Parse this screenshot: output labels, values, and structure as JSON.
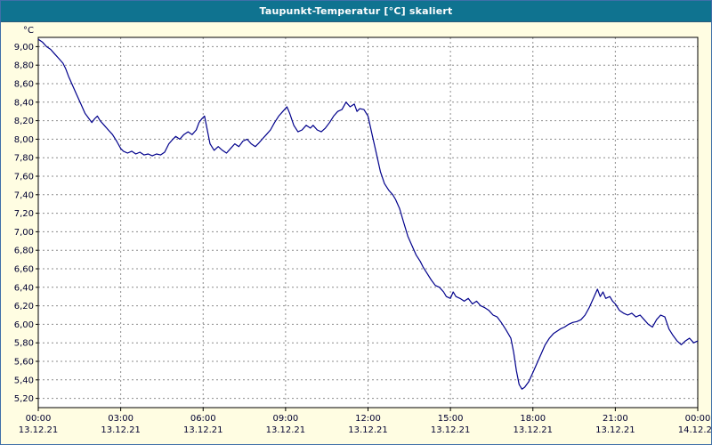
{
  "window": {
    "title": "Taupunkt-Temperatur [°C] skaliert"
  },
  "colors": {
    "title_bar": "#0F7390",
    "background": "#FFFDE2",
    "plot_bg": "#FFFFFF",
    "line": "#00008B",
    "grid": "#8C8C8C",
    "axis": "#000000",
    "frame": "#3F6FA8",
    "text": "#000030"
  },
  "chart_data": {
    "type": "line",
    "title": "Taupunkt-Temperatur [°C] skaliert",
    "ylabel": "°C",
    "ylim": [
      5.1,
      9.1
    ],
    "xlim": [
      0,
      24
    ],
    "grid": "dashed",
    "legend": "none",
    "yticks": [
      {
        "value": 9.0,
        "label": "9,00"
      },
      {
        "value": 8.8,
        "label": "8,80"
      },
      {
        "value": 8.6,
        "label": "8,60"
      },
      {
        "value": 8.4,
        "label": "8,40"
      },
      {
        "value": 8.2,
        "label": "8,20"
      },
      {
        "value": 8.0,
        "label": "8,00"
      },
      {
        "value": 7.8,
        "label": "7,80"
      },
      {
        "value": 7.6,
        "label": "7,60"
      },
      {
        "value": 7.4,
        "label": "7,40"
      },
      {
        "value": 7.2,
        "label": "7,20"
      },
      {
        "value": 7.0,
        "label": "7,00"
      },
      {
        "value": 6.8,
        "label": "6,80"
      },
      {
        "value": 6.6,
        "label": "6,60"
      },
      {
        "value": 6.4,
        "label": "6,40"
      },
      {
        "value": 6.2,
        "label": "6,20"
      },
      {
        "value": 6.0,
        "label": "6,00"
      },
      {
        "value": 5.8,
        "label": "5,80"
      },
      {
        "value": 5.6,
        "label": "5,60"
      },
      {
        "value": 5.4,
        "label": "5,40"
      },
      {
        "value": 5.2,
        "label": "5,20"
      }
    ],
    "xticks": [
      {
        "t": 0,
        "time": "00:00",
        "date": "13.12.21"
      },
      {
        "t": 3,
        "time": "03:00",
        "date": "13.12.21"
      },
      {
        "t": 6,
        "time": "06:00",
        "date": "13.12.21"
      },
      {
        "t": 9,
        "time": "09:00",
        "date": "13.12.21"
      },
      {
        "t": 12,
        "time": "12:00",
        "date": "13.12.21"
      },
      {
        "t": 15,
        "time": "15:00",
        "date": "13.12.21"
      },
      {
        "t": 18,
        "time": "18:00",
        "date": "13.12.21"
      },
      {
        "t": 21,
        "time": "21:00",
        "date": "13.12.21"
      },
      {
        "t": 24,
        "time": "00:00",
        "date": "14.12.21"
      }
    ],
    "series": [
      {
        "name": "Taupunkt-Temperatur",
        "points": [
          [
            0.0,
            9.08
          ],
          [
            0.15,
            9.05
          ],
          [
            0.3,
            9.0
          ],
          [
            0.45,
            8.97
          ],
          [
            0.6,
            8.92
          ],
          [
            0.75,
            8.87
          ],
          [
            0.9,
            8.82
          ],
          [
            1.0,
            8.76
          ],
          [
            1.1,
            8.68
          ],
          [
            1.25,
            8.58
          ],
          [
            1.4,
            8.48
          ],
          [
            1.55,
            8.38
          ],
          [
            1.7,
            8.28
          ],
          [
            1.85,
            8.22
          ],
          [
            1.95,
            8.18
          ],
          [
            2.05,
            8.22
          ],
          [
            2.15,
            8.25
          ],
          [
            2.25,
            8.2
          ],
          [
            2.4,
            8.15
          ],
          [
            2.55,
            8.1
          ],
          [
            2.7,
            8.05
          ],
          [
            2.85,
            7.98
          ],
          [
            3.0,
            7.9
          ],
          [
            3.1,
            7.87
          ],
          [
            3.25,
            7.85
          ],
          [
            3.4,
            7.87
          ],
          [
            3.55,
            7.84
          ],
          [
            3.7,
            7.86
          ],
          [
            3.85,
            7.83
          ],
          [
            4.0,
            7.84
          ],
          [
            4.15,
            7.82
          ],
          [
            4.3,
            7.84
          ],
          [
            4.45,
            7.83
          ],
          [
            4.6,
            7.86
          ],
          [
            4.75,
            7.95
          ],
          [
            4.9,
            8.0
          ],
          [
            5.0,
            8.03
          ],
          [
            5.15,
            8.0
          ],
          [
            5.3,
            8.05
          ],
          [
            5.45,
            8.08
          ],
          [
            5.6,
            8.05
          ],
          [
            5.75,
            8.1
          ],
          [
            5.85,
            8.18
          ],
          [
            5.95,
            8.22
          ],
          [
            6.05,
            8.25
          ],
          [
            6.15,
            8.1
          ],
          [
            6.25,
            7.95
          ],
          [
            6.4,
            7.88
          ],
          [
            6.55,
            7.92
          ],
          [
            6.7,
            7.88
          ],
          [
            6.85,
            7.85
          ],
          [
            7.0,
            7.9
          ],
          [
            7.15,
            7.95
          ],
          [
            7.3,
            7.92
          ],
          [
            7.45,
            7.98
          ],
          [
            7.6,
            8.0
          ],
          [
            7.75,
            7.95
          ],
          [
            7.9,
            7.92
          ],
          [
            8.0,
            7.95
          ],
          [
            8.15,
            8.0
          ],
          [
            8.3,
            8.05
          ],
          [
            8.45,
            8.1
          ],
          [
            8.6,
            8.18
          ],
          [
            8.75,
            8.25
          ],
          [
            8.9,
            8.3
          ],
          [
            9.05,
            8.35
          ],
          [
            9.15,
            8.28
          ],
          [
            9.3,
            8.15
          ],
          [
            9.45,
            8.08
          ],
          [
            9.6,
            8.1
          ],
          [
            9.75,
            8.15
          ],
          [
            9.9,
            8.12
          ],
          [
            10.0,
            8.15
          ],
          [
            10.15,
            8.1
          ],
          [
            10.3,
            8.08
          ],
          [
            10.45,
            8.12
          ],
          [
            10.6,
            8.18
          ],
          [
            10.75,
            8.25
          ],
          [
            10.9,
            8.3
          ],
          [
            11.05,
            8.32
          ],
          [
            11.2,
            8.4
          ],
          [
            11.35,
            8.35
          ],
          [
            11.5,
            8.38
          ],
          [
            11.6,
            8.3
          ],
          [
            11.7,
            8.33
          ],
          [
            11.85,
            8.32
          ],
          [
            12.0,
            8.25
          ],
          [
            12.15,
            8.05
          ],
          [
            12.3,
            7.85
          ],
          [
            12.45,
            7.65
          ],
          [
            12.6,
            7.52
          ],
          [
            12.75,
            7.45
          ],
          [
            12.9,
            7.4
          ],
          [
            13.0,
            7.35
          ],
          [
            13.15,
            7.25
          ],
          [
            13.3,
            7.1
          ],
          [
            13.45,
            6.95
          ],
          [
            13.6,
            6.85
          ],
          [
            13.75,
            6.75
          ],
          [
            13.9,
            6.68
          ],
          [
            14.0,
            6.62
          ],
          [
            14.15,
            6.55
          ],
          [
            14.3,
            6.48
          ],
          [
            14.45,
            6.42
          ],
          [
            14.6,
            6.4
          ],
          [
            14.75,
            6.35
          ],
          [
            14.85,
            6.3
          ],
          [
            15.0,
            6.28
          ],
          [
            15.1,
            6.35
          ],
          [
            15.2,
            6.3
          ],
          [
            15.35,
            6.28
          ],
          [
            15.5,
            6.25
          ],
          [
            15.65,
            6.28
          ],
          [
            15.8,
            6.22
          ],
          [
            15.95,
            6.25
          ],
          [
            16.1,
            6.2
          ],
          [
            16.25,
            6.18
          ],
          [
            16.4,
            6.15
          ],
          [
            16.55,
            6.1
          ],
          [
            16.7,
            6.08
          ],
          [
            16.85,
            6.02
          ],
          [
            17.0,
            5.95
          ],
          [
            17.1,
            5.9
          ],
          [
            17.2,
            5.85
          ],
          [
            17.3,
            5.7
          ],
          [
            17.4,
            5.5
          ],
          [
            17.5,
            5.35
          ],
          [
            17.6,
            5.3
          ],
          [
            17.7,
            5.32
          ],
          [
            17.85,
            5.38
          ],
          [
            18.0,
            5.48
          ],
          [
            18.15,
            5.58
          ],
          [
            18.3,
            5.68
          ],
          [
            18.45,
            5.78
          ],
          [
            18.6,
            5.85
          ],
          [
            18.75,
            5.9
          ],
          [
            18.9,
            5.93
          ],
          [
            19.0,
            5.95
          ],
          [
            19.15,
            5.97
          ],
          [
            19.3,
            6.0
          ],
          [
            19.45,
            6.02
          ],
          [
            19.6,
            6.03
          ],
          [
            19.75,
            6.05
          ],
          [
            19.9,
            6.1
          ],
          [
            20.05,
            6.18
          ],
          [
            20.2,
            6.28
          ],
          [
            20.35,
            6.38
          ],
          [
            20.45,
            6.3
          ],
          [
            20.55,
            6.35
          ],
          [
            20.65,
            6.28
          ],
          [
            20.8,
            6.3
          ],
          [
            20.9,
            6.25
          ],
          [
            21.0,
            6.22
          ],
          [
            21.15,
            6.15
          ],
          [
            21.3,
            6.12
          ],
          [
            21.45,
            6.1
          ],
          [
            21.6,
            6.12
          ],
          [
            21.75,
            6.08
          ],
          [
            21.9,
            6.1
          ],
          [
            22.05,
            6.05
          ],
          [
            22.2,
            6.0
          ],
          [
            22.35,
            5.97
          ],
          [
            22.5,
            6.05
          ],
          [
            22.65,
            6.1
          ],
          [
            22.8,
            6.08
          ],
          [
            22.95,
            5.95
          ],
          [
            23.1,
            5.88
          ],
          [
            23.25,
            5.82
          ],
          [
            23.4,
            5.78
          ],
          [
            23.55,
            5.82
          ],
          [
            23.7,
            5.85
          ],
          [
            23.85,
            5.8
          ],
          [
            24.0,
            5.82
          ]
        ]
      }
    ]
  }
}
